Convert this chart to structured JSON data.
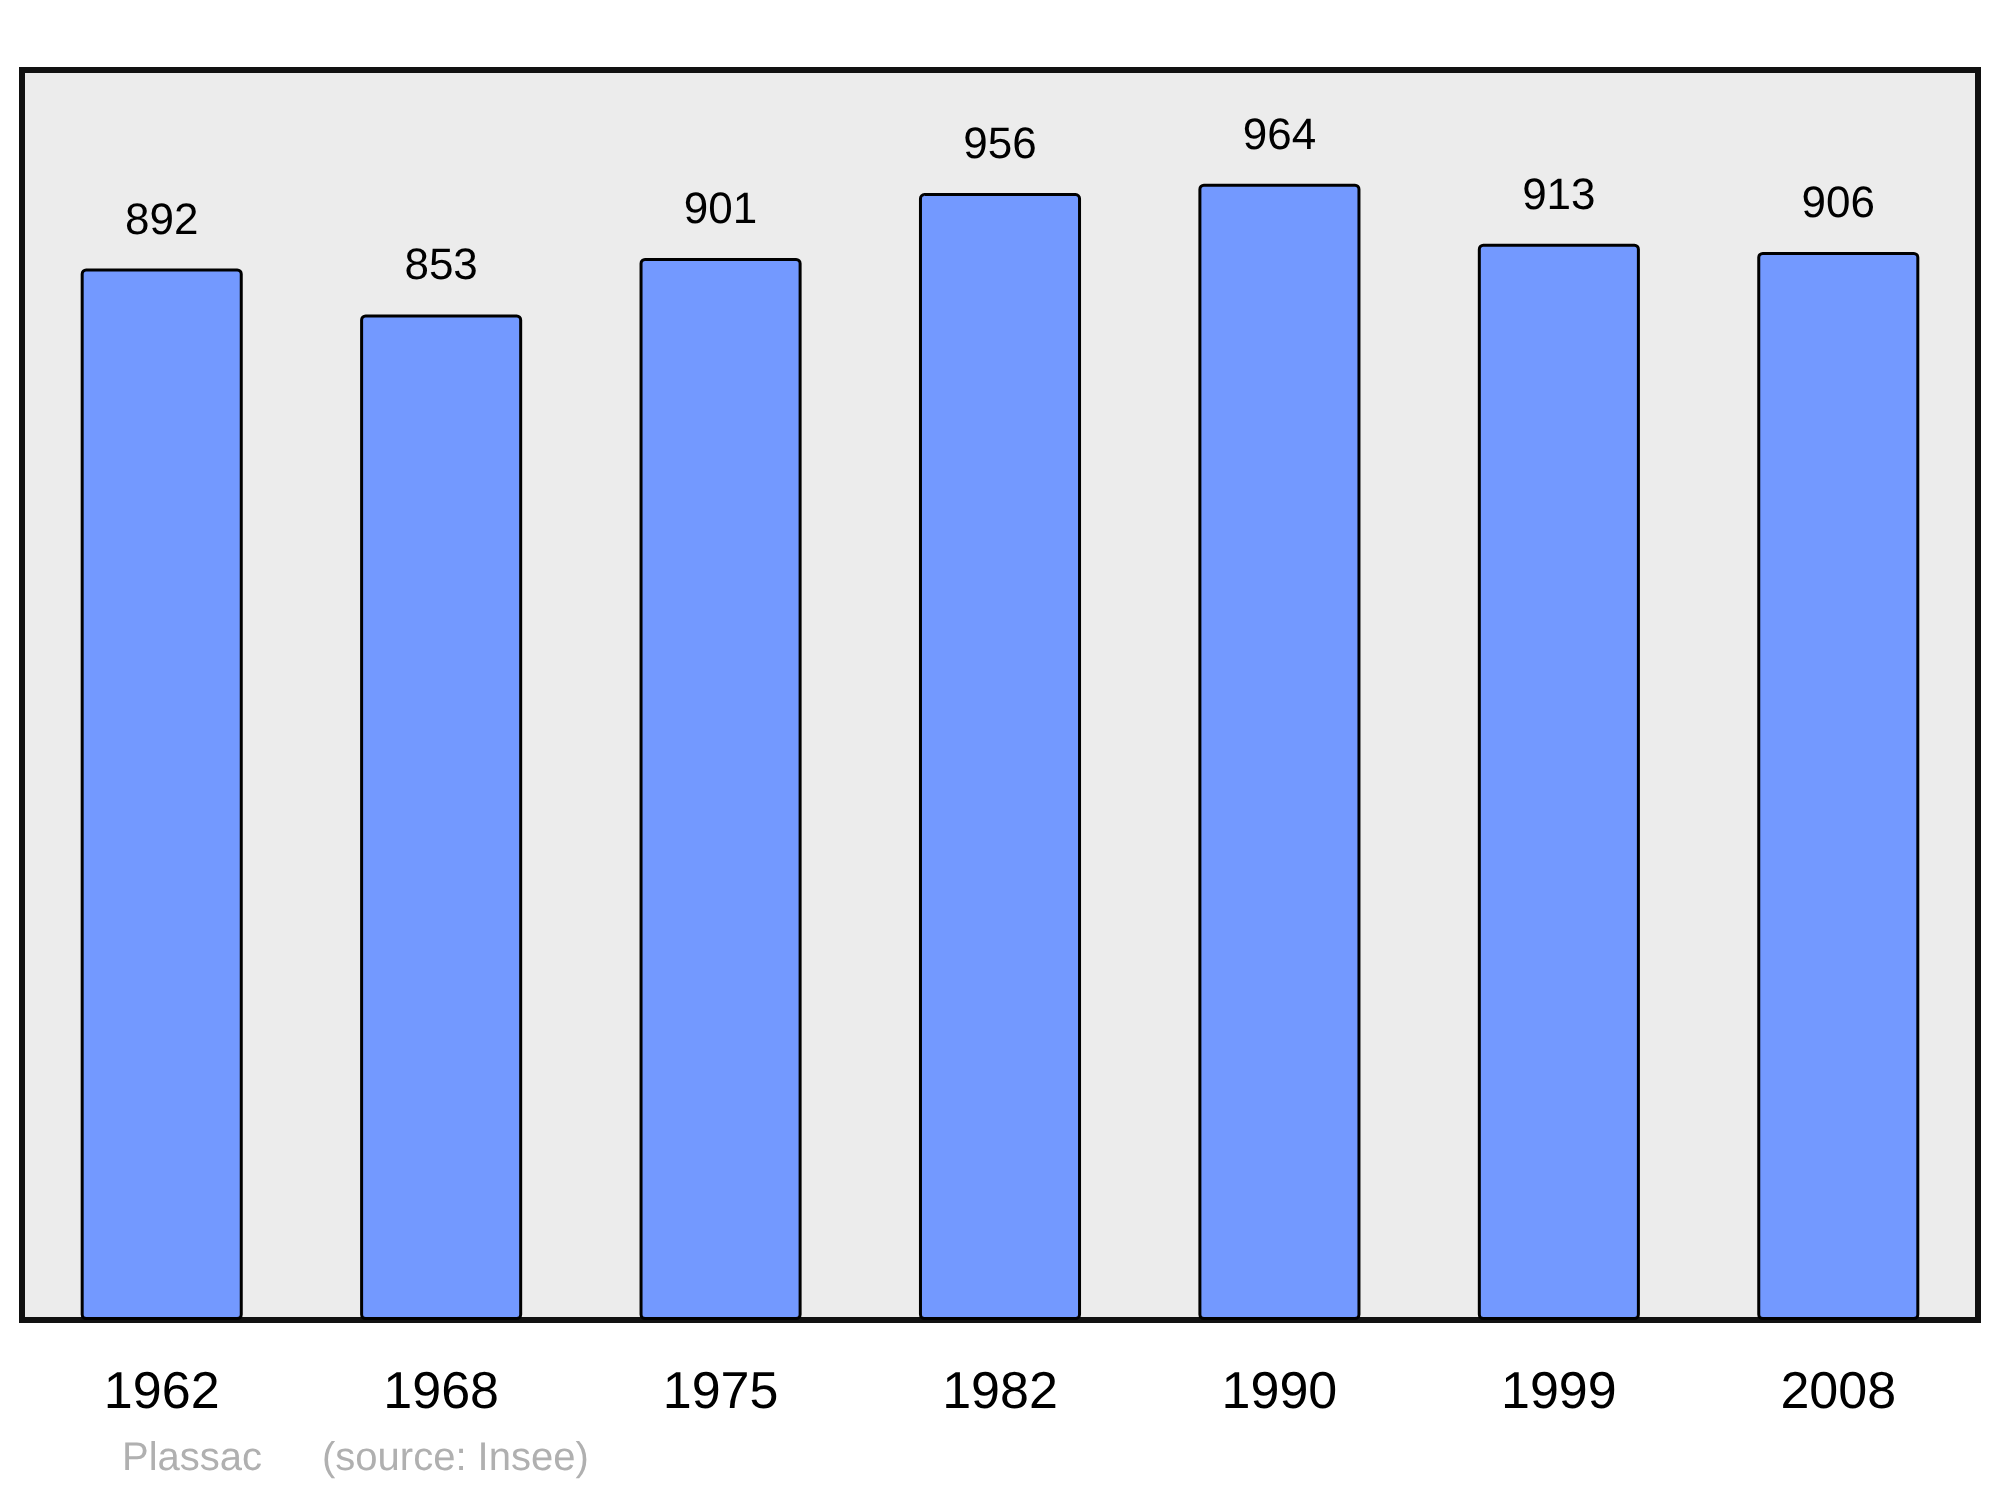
{
  "chart_data": {
    "type": "bar",
    "categories": [
      "1962",
      "1968",
      "1975",
      "1982",
      "1990",
      "1999",
      "2008"
    ],
    "values": [
      892,
      853,
      901,
      956,
      964,
      913,
      906
    ],
    "color": "#7399ff",
    "data_labels": true,
    "tick_labels": "x",
    "annotations": [
      "Plassac",
      "(source: Insee)"
    ]
  }
}
